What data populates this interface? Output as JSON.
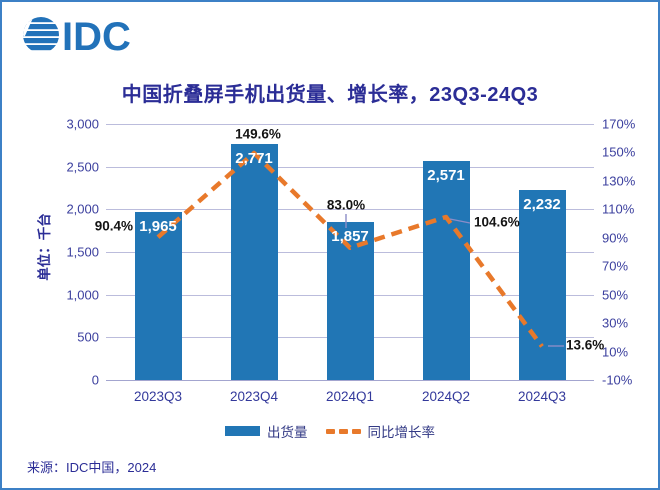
{
  "logo": {
    "text": "IDC"
  },
  "title": "中国折叠屏手机出货量、增长率，23Q3-24Q3",
  "unit_label": "单位：千台",
  "source": "来源：IDC中国，2024",
  "colors": {
    "bar": "#2176b5",
    "line": "#e8792b",
    "title_text": "#2b2d96",
    "axis_text": "#3b3f9e",
    "gridline": "#bbbcdc",
    "bar_value_text": "#ffffff",
    "pct_label_text": "#141414",
    "card_border": "#3c80c6",
    "leader": "#8b8dc8",
    "logo_blue": "#2272b9"
  },
  "legend": {
    "items": [
      {
        "label": "出货量",
        "swatch": "bar"
      },
      {
        "label": "同比增长率",
        "swatch": "dashed-line"
      }
    ]
  },
  "chart_data": {
    "type": "combo",
    "categories": [
      "2023Q3",
      "2023Q4",
      "2024Q1",
      "2024Q2",
      "2024Q3"
    ],
    "series": [
      {
        "name": "出货量",
        "type": "bar",
        "axis": "left",
        "values": [
          1965,
          2771,
          1857,
          2571,
          2232
        ],
        "labels": [
          "1,965",
          "2,771",
          "1,857",
          "2,571",
          "2,232"
        ]
      },
      {
        "name": "同比增长率",
        "type": "line",
        "style": "dashed",
        "axis": "right",
        "values": [
          90.4,
          149.6,
          83.0,
          104.6,
          13.6
        ],
        "labels": [
          "90.4%",
          "149.6%",
          "83.0%",
          "104.6%",
          "13.6%"
        ]
      }
    ],
    "left_axis": {
      "title": "单位：千台",
      "min": 0,
      "max": 3000,
      "tick_values": [
        3000,
        2500,
        2000,
        1500,
        1000,
        500,
        0
      ],
      "tick_labels": [
        "3,000",
        "2,500",
        "2,000",
        "1,500",
        "1,000",
        "500",
        "0"
      ]
    },
    "right_axis": {
      "min": -10,
      "max": 170,
      "tick_values": [
        170,
        150,
        130,
        110,
        90,
        70,
        50,
        30,
        10,
        -10
      ],
      "tick_labels": [
        "170%",
        "150%",
        "130%",
        "110%",
        "90%",
        "70%",
        "50%",
        "30%",
        "10%",
        "-10%"
      ]
    },
    "grid": true,
    "legend_position": "bottom"
  }
}
